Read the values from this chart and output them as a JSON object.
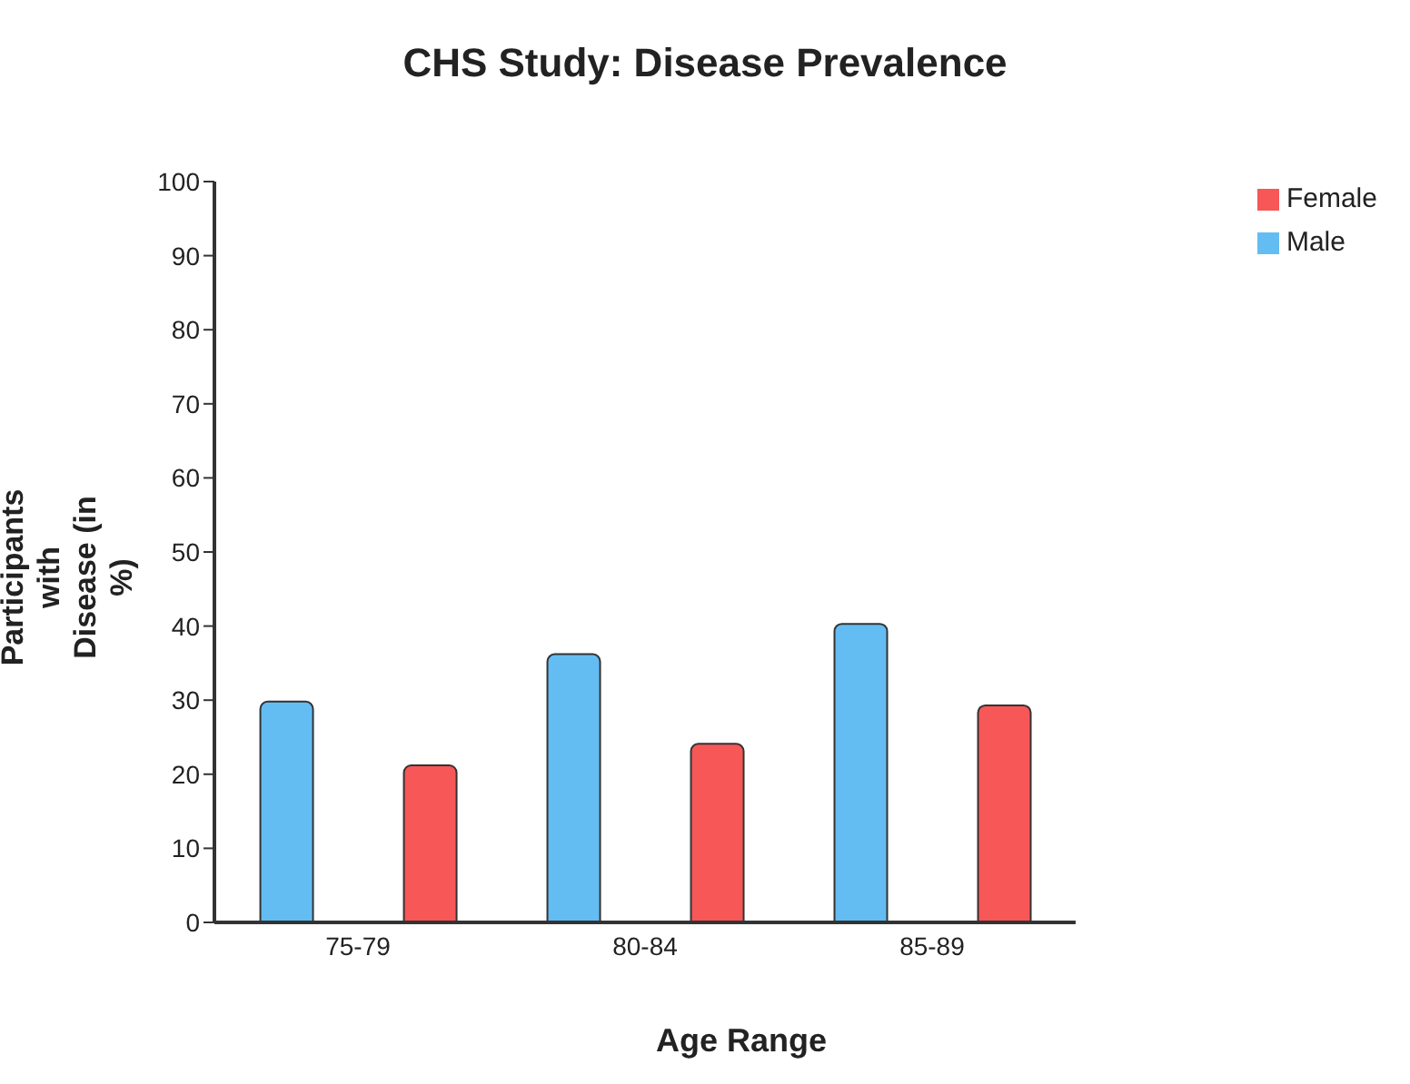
{
  "chart_data": {
    "type": "bar",
    "title": "CHS Study: Disease Prevalence",
    "xlabel": "Age Range",
    "ylabel": "Participants with Disease (in %)",
    "categories": [
      "75-79",
      "80-84",
      "85-89"
    ],
    "series": [
      {
        "name": "Male",
        "color": "#63bdf2",
        "values": [
          29.8,
          36.2,
          40.3
        ]
      },
      {
        "name": "Female",
        "color": "#f75757",
        "values": [
          21.2,
          24.1,
          29.3
        ]
      }
    ],
    "ylim": [
      0,
      100
    ],
    "yticks": [
      0,
      10,
      20,
      30,
      40,
      50,
      60,
      70,
      80,
      90,
      100
    ],
    "grid": false,
    "legend": "top right"
  }
}
